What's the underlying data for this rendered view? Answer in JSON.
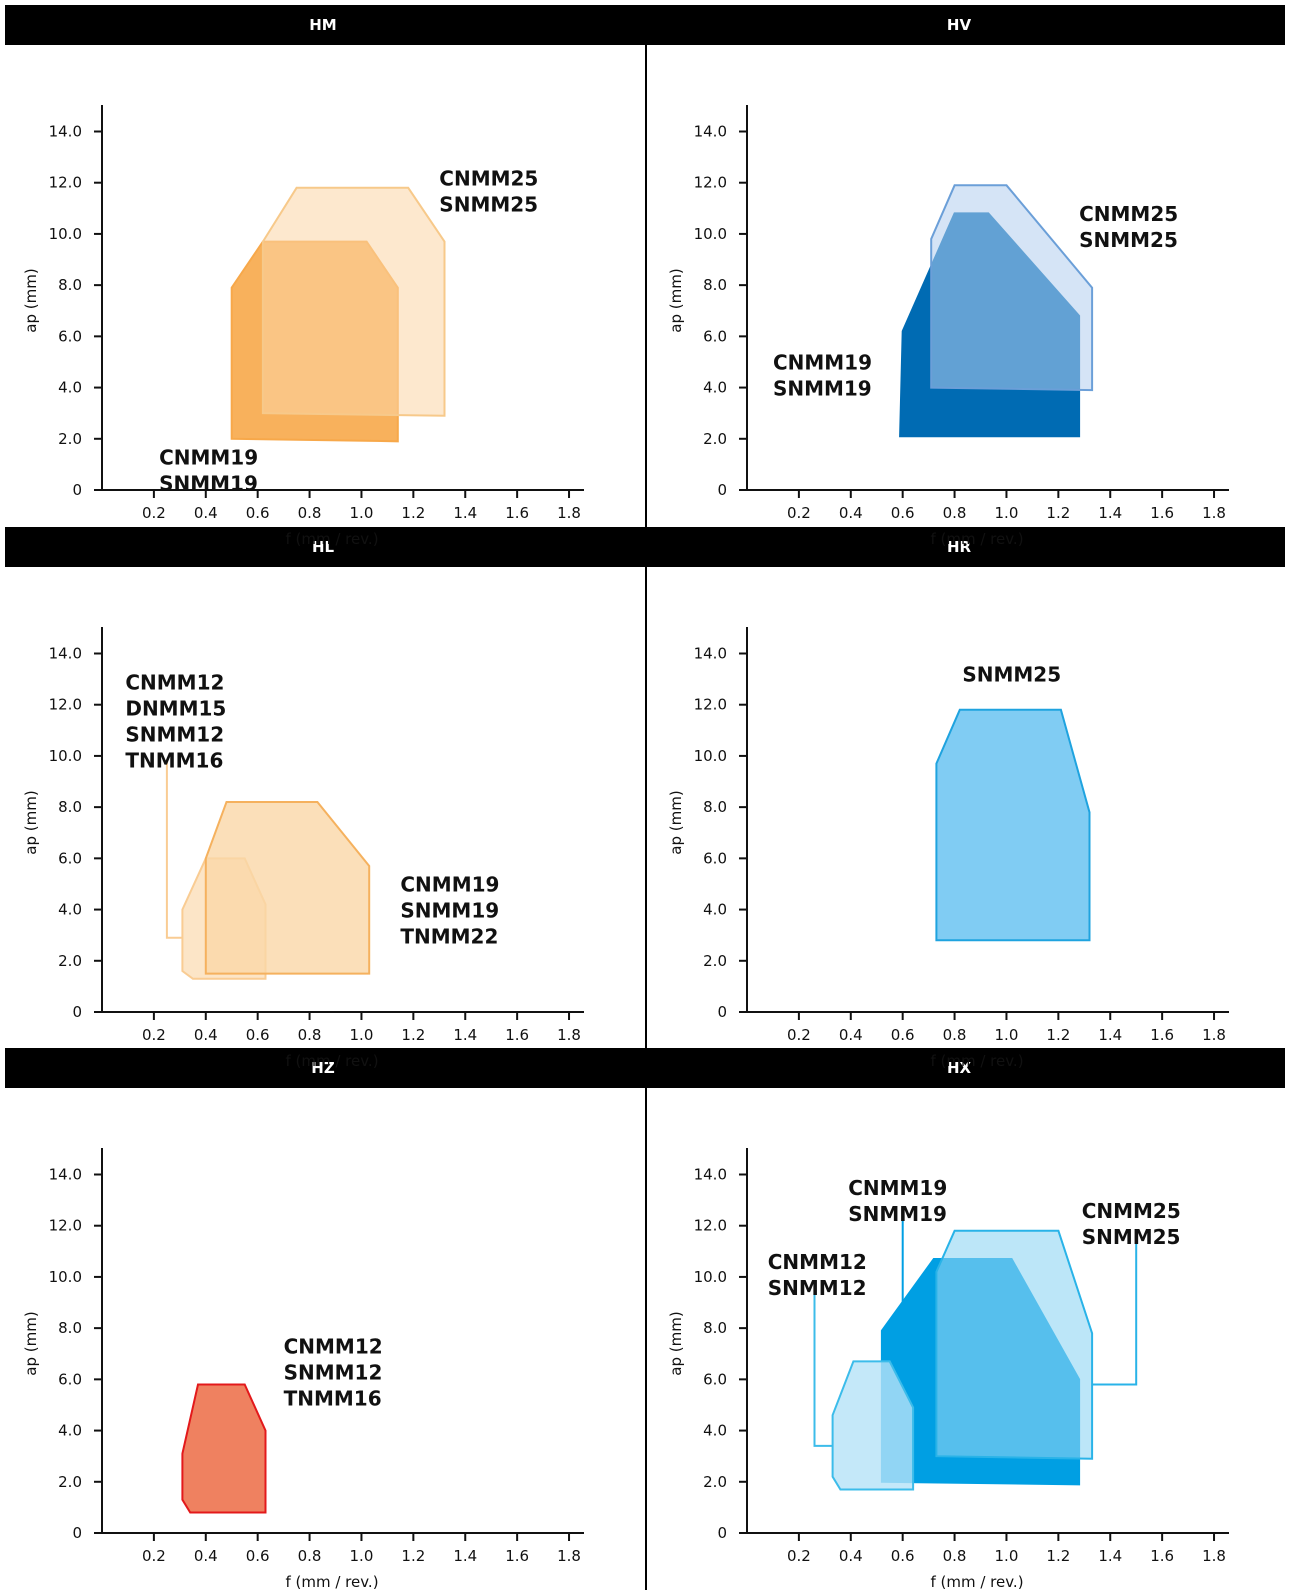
{
  "chart_data": [
    {
      "panel": "HM",
      "type": "area",
      "xlabel": "f (mm / rev.)",
      "ylabel": "ap (mm)",
      "xlim": [
        0,
        1.85
      ],
      "ylim": [
        0,
        14.8
      ],
      "xticks": [
        "0.2",
        "0.4",
        "0.6",
        "0.8",
        "1.0",
        "1.2",
        "1.4",
        "1.6",
        "1.8"
      ],
      "yticks": [
        "0",
        "2.0",
        "4.0",
        "6.0",
        "8.0",
        "10.0",
        "12.0",
        "14.0"
      ],
      "series": [
        {
          "lines": [
            "CNMM19",
            "SNMM19"
          ],
          "color": "#f7a84a",
          "fill_opacity": 0.9,
          "stroke": "#f7a84a",
          "label_at": [
            0.22,
            1.0
          ],
          "polygon": [
            [
              0.5,
              2.0
            ],
            [
              0.5,
              7.9
            ],
            [
              0.62,
              9.7
            ],
            [
              1.02,
              9.7
            ],
            [
              1.14,
              7.9
            ],
            [
              1.14,
              1.9
            ]
          ]
        },
        {
          "lines": [
            "CNMM25",
            "SNMM25"
          ],
          "color": "#fbd5a6",
          "fill_opacity": 0.55,
          "stroke": "#f7c98a",
          "label_at": [
            1.3,
            11.9
          ],
          "polygon": [
            [
              0.62,
              3.0
            ],
            [
              0.62,
              9.7
            ],
            [
              0.75,
              11.8
            ],
            [
              1.18,
              11.8
            ],
            [
              1.32,
              9.7
            ],
            [
              1.32,
              2.9
            ]
          ]
        }
      ]
    },
    {
      "panel": "HV",
      "type": "area",
      "xlabel": "f (mm / rev.)",
      "ylabel": "ap (mm)",
      "xlim": [
        0,
        1.85
      ],
      "ylim": [
        0,
        14.8
      ],
      "xticks": [
        "0.2",
        "0.4",
        "0.6",
        "0.8",
        "1.0",
        "1.2",
        "1.4",
        "1.6",
        "1.8"
      ],
      "yticks": [
        "0",
        "2.0",
        "4.0",
        "6.0",
        "8.0",
        "10.0",
        "12.0",
        "14.0"
      ],
      "series": [
        {
          "lines": [
            "CNMM19",
            "SNMM19"
          ],
          "color": "#006bb3",
          "fill_opacity": 1.0,
          "stroke": "#006bb3",
          "label_at": [
            0.1,
            4.7
          ],
          "polygon": [
            [
              0.59,
              2.1
            ],
            [
              0.6,
              6.2
            ],
            [
              0.8,
              10.8
            ],
            [
              0.93,
              10.8
            ],
            [
              1.28,
              6.8
            ],
            [
              1.28,
              2.1
            ]
          ]
        },
        {
          "lines": [
            "CNMM25",
            "SNMM25"
          ],
          "color": "#b3cdee",
          "fill_opacity": 0.55,
          "stroke": "#6b9fd8",
          "label_at": [
            1.28,
            10.5
          ],
          "polygon": [
            [
              0.71,
              4.0
            ],
            [
              0.71,
              9.8
            ],
            [
              0.8,
              11.9
            ],
            [
              1.0,
              11.9
            ],
            [
              1.33,
              7.9
            ],
            [
              1.33,
              3.9
            ]
          ]
        }
      ]
    },
    {
      "panel": "HL",
      "type": "area",
      "xlabel": "f (mm / rev.)",
      "ylabel": "ap (mm)",
      "xlim": [
        0,
        1.85
      ],
      "ylim": [
        0,
        14.8
      ],
      "xticks": [
        "0.2",
        "0.4",
        "0.6",
        "0.8",
        "1.0",
        "1.2",
        "1.4",
        "1.6",
        "1.8"
      ],
      "yticks": [
        "0",
        "2.0",
        "4.0",
        "6.0",
        "8.0",
        "10.0",
        "12.0",
        "14.0"
      ],
      "series": [
        {
          "lines": [
            "CNMM12",
            "DNMM15",
            "SNMM12",
            "TNMM16"
          ],
          "color": "#fbdcb4",
          "fill_opacity": 0.75,
          "stroke": "#f9cc93",
          "label_at": [
            0.09,
            12.6
          ],
          "polygon": [
            [
              0.35,
              1.3
            ],
            [
              0.31,
              1.6
            ],
            [
              0.31,
              4.0
            ],
            [
              0.4,
              6.0
            ],
            [
              0.55,
              6.0
            ],
            [
              0.63,
              4.2
            ],
            [
              0.63,
              1.3
            ]
          ],
          "leader": [
            [
              0.25,
              9.8
            ],
            [
              0.25,
              2.9
            ],
            [
              0.31,
              2.9
            ]
          ]
        },
        {
          "lines": [
            "CNMM19",
            "SNMM19",
            "TNMM22"
          ],
          "color": "#fad7a8",
          "fill_opacity": 0.8,
          "stroke": "#f5b15e",
          "label_at": [
            1.15,
            4.7
          ],
          "polygon": [
            [
              0.4,
              1.5
            ],
            [
              0.4,
              6.0
            ],
            [
              0.48,
              8.2
            ],
            [
              0.83,
              8.2
            ],
            [
              1.03,
              5.7
            ],
            [
              1.03,
              1.5
            ]
          ]
        }
      ]
    },
    {
      "panel": "HR",
      "type": "area",
      "xlabel": "f (mm / rev.)",
      "ylabel": "ap (mm)",
      "xlim": [
        0,
        1.85
      ],
      "ylim": [
        0,
        14.8
      ],
      "xticks": [
        "0.2",
        "0.4",
        "0.6",
        "0.8",
        "1.0",
        "1.2",
        "1.4",
        "1.6",
        "1.8"
      ],
      "yticks": [
        "0",
        "2.0",
        "4.0",
        "6.0",
        "8.0",
        "10.0",
        "12.0",
        "14.0"
      ],
      "series": [
        {
          "lines": [
            "SNMM25"
          ],
          "color": "#80ccf3",
          "fill_opacity": 1.0,
          "stroke": "#1fa3df",
          "label_at": [
            0.83,
            12.9
          ],
          "polygon": [
            [
              0.73,
              2.8
            ],
            [
              0.73,
              9.7
            ],
            [
              0.82,
              11.8
            ],
            [
              1.21,
              11.8
            ],
            [
              1.32,
              7.8
            ],
            [
              1.32,
              2.8
            ]
          ]
        }
      ]
    },
    {
      "panel": "HZ",
      "type": "area",
      "xlabel": "f (mm / rev.)",
      "ylabel": "ap (mm)",
      "xlim": [
        0,
        1.85
      ],
      "ylim": [
        0,
        14.8
      ],
      "xticks": [
        "0.2",
        "0.4",
        "0.6",
        "0.8",
        "1.0",
        "1.2",
        "1.4",
        "1.6",
        "1.8"
      ],
      "yticks": [
        "0",
        "2.0",
        "4.0",
        "6.0",
        "8.0",
        "10.0",
        "12.0",
        "14.0"
      ],
      "series": [
        {
          "lines": [
            "CNMM12",
            "SNMM12",
            "TNMM16"
          ],
          "color": "#ef8160",
          "fill_opacity": 1.0,
          "stroke": "#e3191b",
          "label_at": [
            0.7,
            7.0
          ],
          "polygon": [
            [
              0.34,
              0.8
            ],
            [
              0.31,
              1.3
            ],
            [
              0.31,
              3.1
            ],
            [
              0.37,
              5.8
            ],
            [
              0.55,
              5.8
            ],
            [
              0.63,
              4.0
            ],
            [
              0.63,
              0.8
            ]
          ]
        }
      ]
    },
    {
      "panel": "HX",
      "type": "area",
      "xlabel": "f (mm / rev.)",
      "ylabel": "ap (mm)",
      "xlim": [
        0,
        1.85
      ],
      "ylim": [
        0,
        14.8
      ],
      "xticks": [
        "0.2",
        "0.4",
        "0.6",
        "0.8",
        "1.0",
        "1.2",
        "1.4",
        "1.6",
        "1.8"
      ],
      "yticks": [
        "0",
        "2.0",
        "4.0",
        "6.0",
        "8.0",
        "10.0",
        "12.0",
        "14.0"
      ],
      "series": [
        {
          "lines": [
            "CNMM19",
            "SNMM19"
          ],
          "color": "#009fe3",
          "fill_opacity": 1.0,
          "stroke": "#009fe3",
          "label_at": [
            0.39,
            13.2
          ],
          "polygon": [
            [
              0.52,
              2.0
            ],
            [
              0.52,
              7.9
            ],
            [
              0.72,
              10.7
            ],
            [
              1.02,
              10.7
            ],
            [
              1.28,
              6.0
            ],
            [
              1.28,
              1.9
            ]
          ],
          "leader": [
            [
              0.6,
              9.0
            ],
            [
              0.6,
              12.4
            ]
          ]
        },
        {
          "lines": [
            "CNMM25",
            "SNMM25"
          ],
          "color": "#8fd6f3",
          "fill_opacity": 0.6,
          "stroke": "#29b3e8",
          "label_at": [
            1.29,
            12.3
          ],
          "polygon": [
            [
              0.73,
              3.0
            ],
            [
              0.73,
              10.2
            ],
            [
              0.8,
              11.8
            ],
            [
              1.2,
              11.8
            ],
            [
              1.33,
              7.8
            ],
            [
              1.33,
              2.9
            ]
          ],
          "leader": [
            [
              1.33,
              5.8
            ],
            [
              1.5,
              5.8
            ],
            [
              1.5,
              11.5
            ]
          ]
        },
        {
          "lines": [
            "CNMM12",
            "SNMM12"
          ],
          "color": "#b5e2f7",
          "fill_opacity": 0.8,
          "stroke": "#3cbcea",
          "label_at": [
            0.08,
            10.3
          ],
          "polygon": [
            [
              0.36,
              1.7
            ],
            [
              0.33,
              2.2
            ],
            [
              0.33,
              4.6
            ],
            [
              0.41,
              6.7
            ],
            [
              0.55,
              6.7
            ],
            [
              0.64,
              4.9
            ],
            [
              0.64,
              1.7
            ]
          ],
          "leader": [
            [
              0.26,
              9.8
            ],
            [
              0.26,
              3.4
            ],
            [
              0.33,
              3.4
            ]
          ]
        }
      ]
    }
  ]
}
